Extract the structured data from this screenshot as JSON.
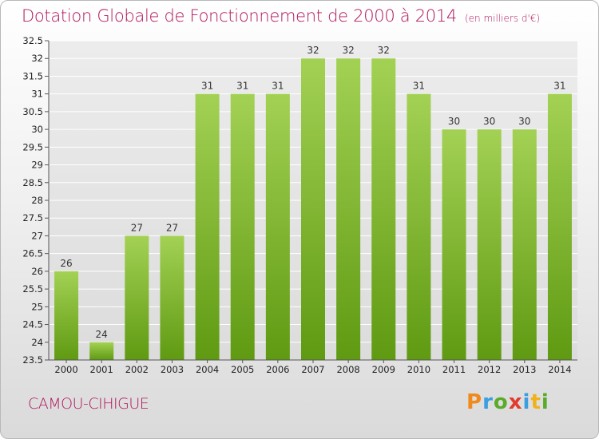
{
  "chart_data": {
    "type": "bar",
    "title": "Dotation Globale de Fonctionnement de 2000 à 2014",
    "subtitle": "(en milliers d'€)",
    "categories": [
      "2000",
      "2001",
      "2002",
      "2003",
      "2004",
      "2005",
      "2006",
      "2007",
      "2008",
      "2009",
      "2010",
      "2011",
      "2012",
      "2013",
      "2014"
    ],
    "values": [
      26,
      24,
      27,
      27,
      31,
      31,
      31,
      32,
      32,
      32,
      31,
      30,
      30,
      30,
      31
    ],
    "value_labels": [
      "26",
      "24",
      "27",
      "27",
      "31",
      "31",
      "31",
      "32",
      "32",
      "32",
      "31",
      "30",
      "30",
      "30",
      "31"
    ],
    "y_ticks": [
      "23.5",
      "24",
      "24.5",
      "25",
      "25.5",
      "26",
      "26.5",
      "27",
      "27.5",
      "28",
      "28.5",
      "29",
      "29.5",
      "30",
      "30.5",
      "31",
      "31.5",
      "32",
      "32.5"
    ],
    "ylim": [
      23.5,
      32.5
    ],
    "grid": true,
    "bar_color_top": "#a3d154",
    "bar_color_bottom": "#5f9a12",
    "grid_color": "#ffffff",
    "background_color": "#e6e6e6"
  },
  "footer": {
    "commune": "CAMOU-CIHIGUE",
    "logo": {
      "p": "P",
      "r": "r",
      "o": "o",
      "x": "x",
      "i1": "i",
      "t": "t",
      "i2": "i"
    }
  },
  "colors": {
    "title": "#b0155b"
  }
}
